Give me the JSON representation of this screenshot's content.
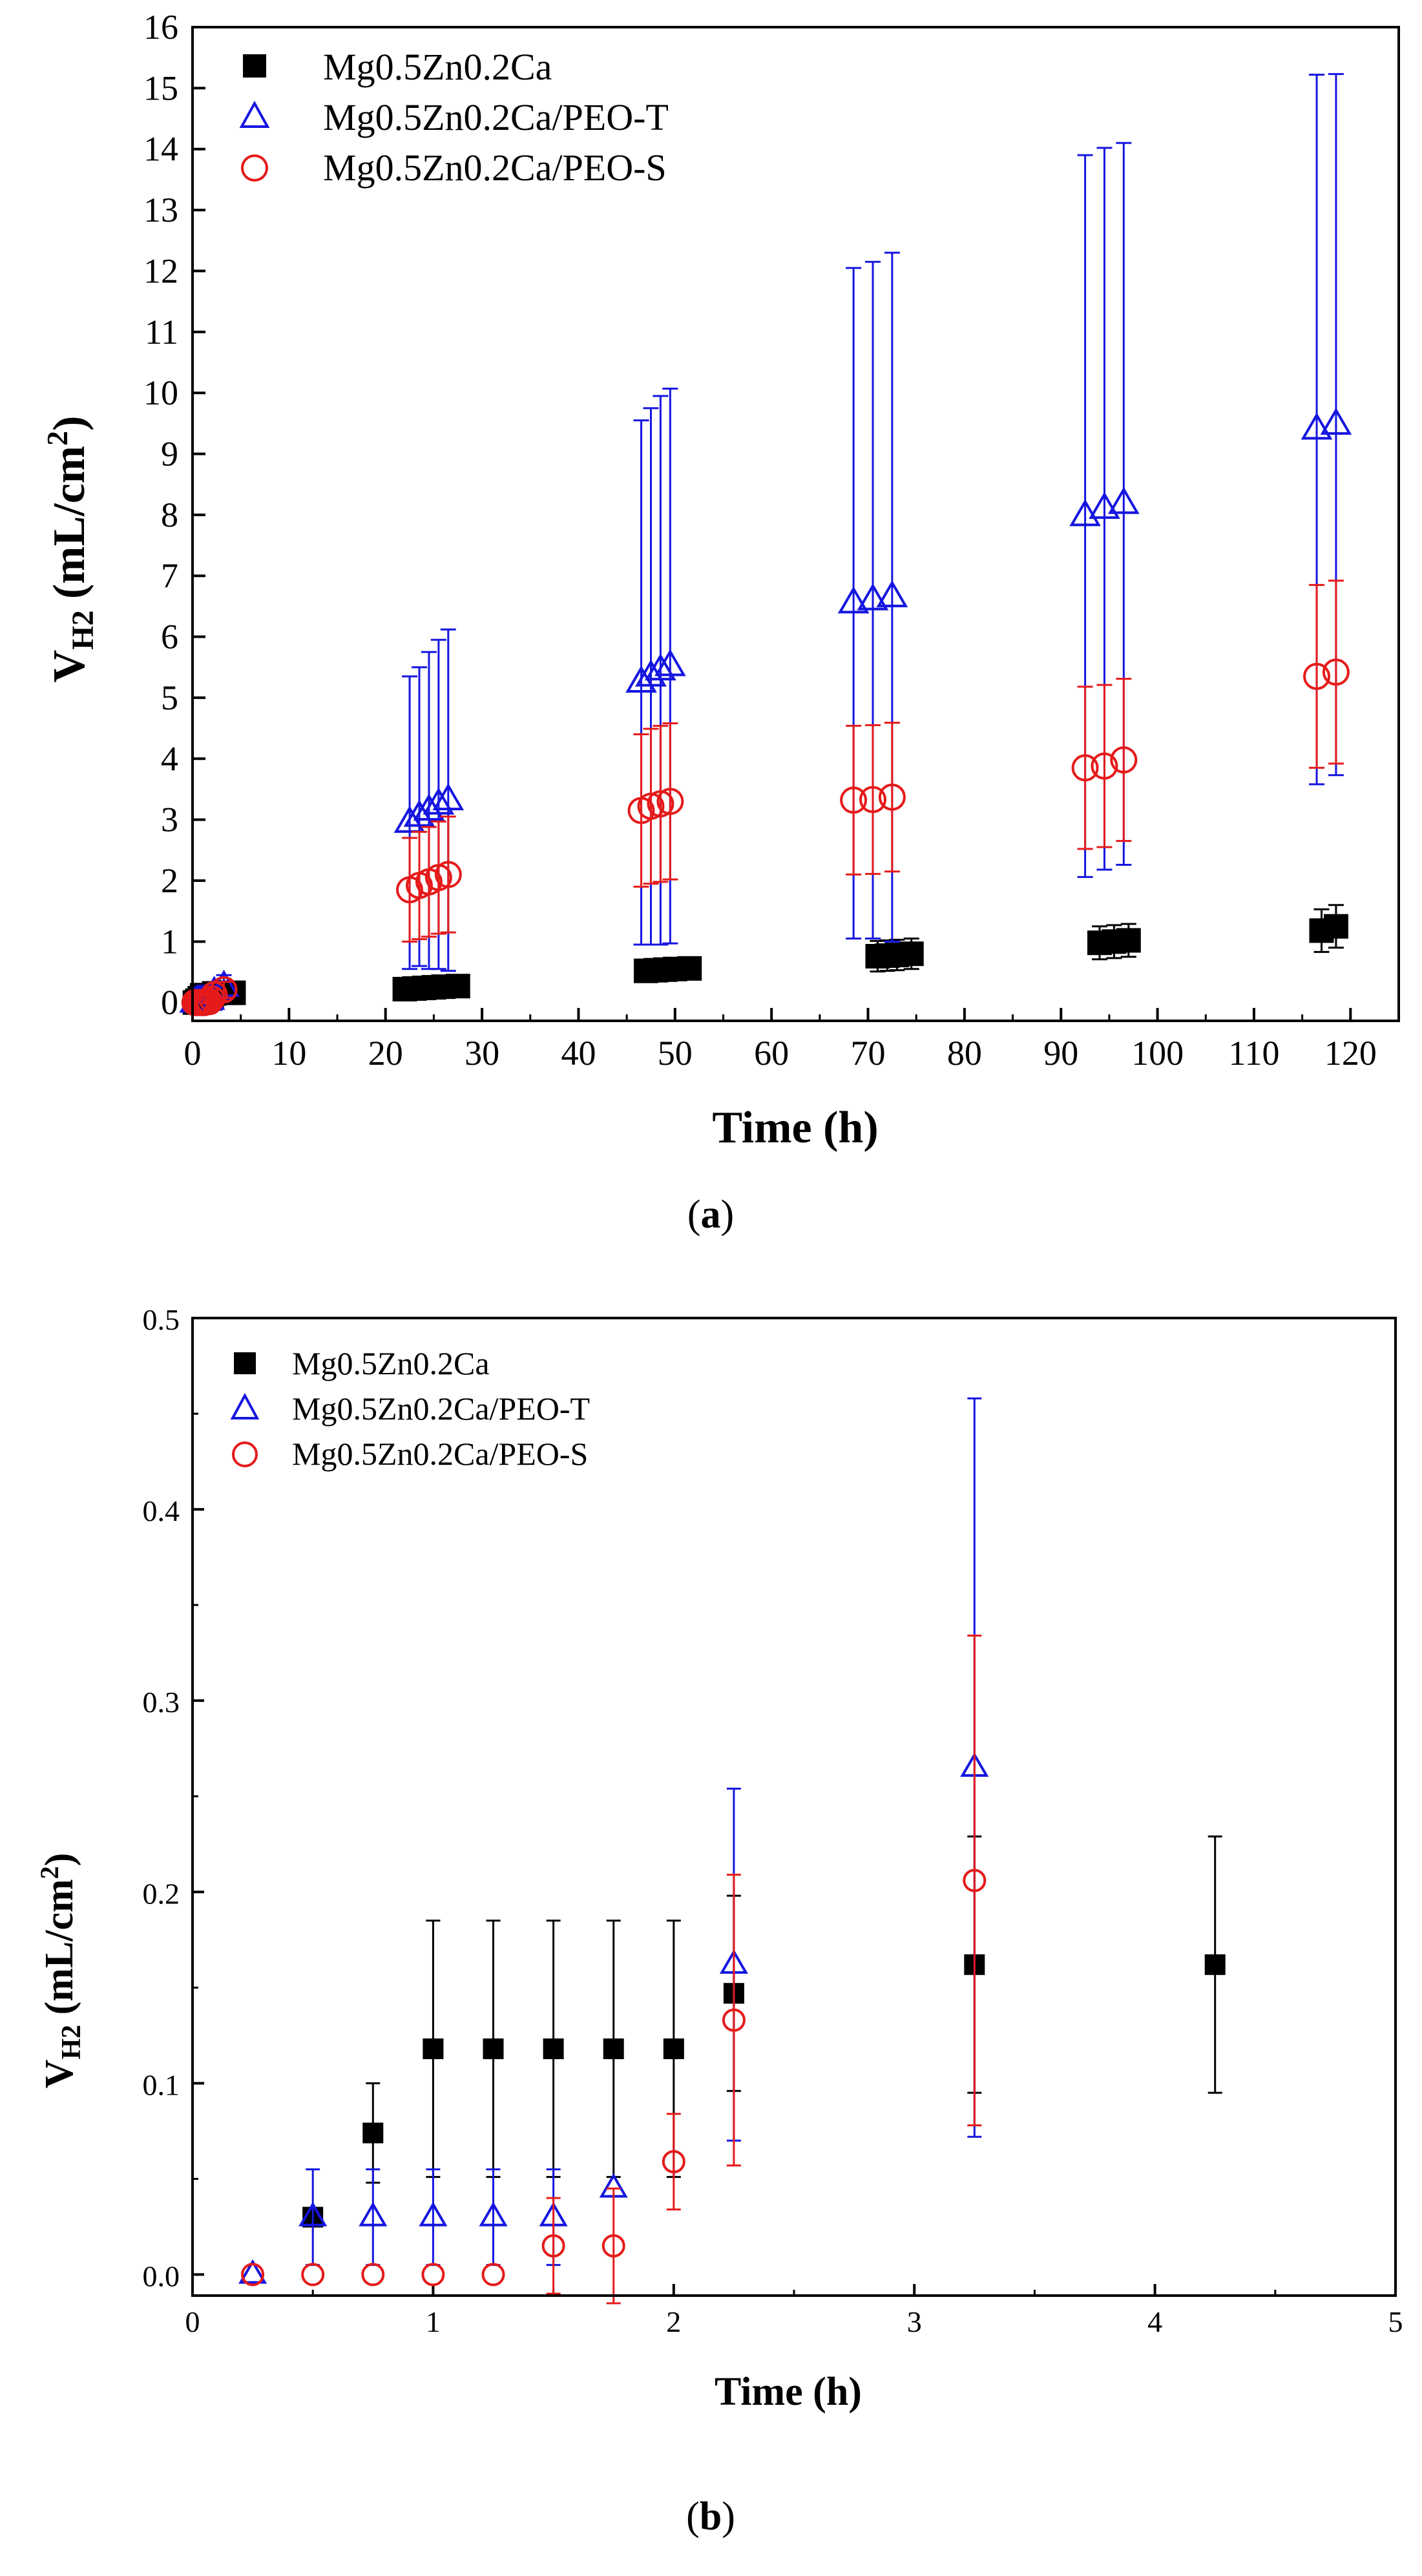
{
  "figure": {
    "panel_a_label": "(a)",
    "panel_b_label": "(b)",
    "panel_a_letter": "a",
    "panel_b_letter": "b"
  },
  "colors": {
    "series_black": "#000000",
    "series_blue": "#1515e0",
    "series_red": "#e51a1a",
    "axis": "#000000"
  },
  "chart_data": [
    {
      "id": "a",
      "type": "scatter",
      "title": "",
      "xlabel": "Time (h)",
      "ylabel_main": "V",
      "ylabel_sub": "H2",
      "ylabel_units": " (mL/cm",
      "ylabel_sup": "2",
      "ylabel_close": ")",
      "xlim": [
        0,
        125
      ],
      "ylim": [
        -0.3,
        16
      ],
      "xticks": [
        0,
        10,
        20,
        30,
        40,
        50,
        60,
        70,
        80,
        90,
        100,
        110,
        120
      ],
      "yticks": [
        0,
        1,
        2,
        3,
        4,
        5,
        6,
        7,
        8,
        9,
        10,
        11,
        12,
        13,
        14,
        15,
        16
      ],
      "xtick_labels": [
        "0",
        "10",
        "20",
        "30",
        "40",
        "50",
        "60",
        "70",
        "80",
        "90",
        "100",
        "110",
        "120"
      ],
      "ytick_labels": [
        "0",
        "1",
        "2",
        "3",
        "4",
        "5",
        "6",
        "7",
        "8",
        "9",
        "10",
        "11",
        "12",
        "13",
        "14",
        "15",
        "16"
      ],
      "legend_position": "top-left",
      "series": [
        {
          "name": "Mg0.5Zn0.2Ca",
          "marker": "filled-square",
          "color": "#000000",
          "points": [
            {
              "x": 0.25,
              "y": 0.0,
              "err": 0.0
            },
            {
              "x": 0.5,
              "y": 0.03,
              "err": 0.02
            },
            {
              "x": 0.75,
              "y": 0.07,
              "err": 0.03
            },
            {
              "x": 1,
              "y": 0.12,
              "err": 0.07
            },
            {
              "x": 1.25,
              "y": 0.12,
              "err": 0.07
            },
            {
              "x": 1.5,
              "y": 0.12,
              "err": 0.07
            },
            {
              "x": 1.75,
              "y": 0.12,
              "err": 0.07
            },
            {
              "x": 2,
              "y": 0.12,
              "err": 0.07
            },
            {
              "x": 2.25,
              "y": 0.15,
              "err": 0.05
            },
            {
              "x": 3.25,
              "y": 0.16,
              "err": 0.07
            },
            {
              "x": 4.25,
              "y": 0.16,
              "err": 0.07
            },
            {
              "x": 22,
              "y": 0.22,
              "err": 0.08
            },
            {
              "x": 23,
              "y": 0.23,
              "err": 0.08
            },
            {
              "x": 24,
              "y": 0.24,
              "err": 0.08
            },
            {
              "x": 25,
              "y": 0.25,
              "err": 0.08
            },
            {
              "x": 26,
              "y": 0.26,
              "err": 0.08
            },
            {
              "x": 27.5,
              "y": 0.27,
              "err": 0.08
            },
            {
              "x": 47,
              "y": 0.52,
              "err": 0.12
            },
            {
              "x": 48,
              "y": 0.53,
              "err": 0.12
            },
            {
              "x": 49,
              "y": 0.54,
              "err": 0.12
            },
            {
              "x": 50,
              "y": 0.55,
              "err": 0.12
            },
            {
              "x": 51.5,
              "y": 0.56,
              "err": 0.12
            },
            {
              "x": 71,
              "y": 0.76,
              "err": 0.25
            },
            {
              "x": 72,
              "y": 0.77,
              "err": 0.25
            },
            {
              "x": 73,
              "y": 0.78,
              "err": 0.25
            },
            {
              "x": 74.5,
              "y": 0.8,
              "err": 0.25
            },
            {
              "x": 94,
              "y": 0.98,
              "err": 0.27
            },
            {
              "x": 95.5,
              "y": 1.0,
              "err": 0.27
            },
            {
              "x": 97,
              "y": 1.02,
              "err": 0.27
            },
            {
              "x": 117,
              "y": 1.18,
              "err": 0.35
            },
            {
              "x": 118.5,
              "y": 1.25,
              "err": 0.35
            }
          ]
        },
        {
          "name": "Mg0.5Zn0.2Ca/PEO-T",
          "marker": "open-triangle",
          "color": "#1515e0",
          "points": [
            {
              "x": 0.25,
              "y": 0.0,
              "err": 0.0
            },
            {
              "x": 0.5,
              "y": 0.03,
              "err": 0.025
            },
            {
              "x": 0.75,
              "y": 0.03,
              "err": 0.025
            },
            {
              "x": 1,
              "y": 0.03,
              "err": 0.025
            },
            {
              "x": 1.25,
              "y": 0.03,
              "err": 0.025
            },
            {
              "x": 1.5,
              "y": 0.03,
              "err": 0.025
            },
            {
              "x": 1.75,
              "y": 0.045,
              "err": 0.04
            },
            {
              "x": 2.25,
              "y": 0.16,
              "err": 0.09
            },
            {
              "x": 3.25,
              "y": 0.26,
              "err": 0.19
            },
            {
              "x": 22.5,
              "y": 2.95,
              "err": 2.4
            },
            {
              "x": 23.5,
              "y": 3.05,
              "err": 2.45
            },
            {
              "x": 24.5,
              "y": 3.15,
              "err": 2.6
            },
            {
              "x": 25.5,
              "y": 3.25,
              "err": 2.7
            },
            {
              "x": 26.5,
              "y": 3.32,
              "err": 2.8
            },
            {
              "x": 46.5,
              "y": 5.25,
              "err": 4.3
            },
            {
              "x": 47.5,
              "y": 5.35,
              "err": 4.4
            },
            {
              "x": 48.5,
              "y": 5.45,
              "err": 4.5
            },
            {
              "x": 49.5,
              "y": 5.52,
              "err": 4.55
            },
            {
              "x": 68.5,
              "y": 6.55,
              "err": 5.5
            },
            {
              "x": 70.5,
              "y": 6.6,
              "err": 5.55
            },
            {
              "x": 72.5,
              "y": 6.65,
              "err": 5.65
            },
            {
              "x": 92.5,
              "y": 7.98,
              "err": 5.92
            },
            {
              "x": 94.5,
              "y": 8.1,
              "err": 5.92
            },
            {
              "x": 96.5,
              "y": 8.18,
              "err": 5.92
            },
            {
              "x": 116.5,
              "y": 9.4,
              "err": 5.82
            },
            {
              "x": 118.5,
              "y": 9.48,
              "err": 5.75
            }
          ]
        },
        {
          "name": "Mg0.5Zn0.2Ca/PEO-S",
          "marker": "open-circle",
          "color": "#e51a1a",
          "points": [
            {
              "x": 0.25,
              "y": 0.0,
              "err": 0.0
            },
            {
              "x": 0.5,
              "y": 0.0,
              "err": 0.0
            },
            {
              "x": 0.75,
              "y": 0.0,
              "err": 0.0
            },
            {
              "x": 1,
              "y": 0.0,
              "err": 0.0
            },
            {
              "x": 1.25,
              "y": 0.0,
              "err": 0.0
            },
            {
              "x": 1.5,
              "y": 0.015,
              "err": 0.025
            },
            {
              "x": 1.75,
              "y": 0.015,
              "err": 0.03
            },
            {
              "x": 2,
              "y": 0.06,
              "err": 0.025
            },
            {
              "x": 2.25,
              "y": 0.13,
              "err": 0.075
            },
            {
              "x": 3.25,
              "y": 0.21,
              "err": 0.13
            },
            {
              "x": 22.5,
              "y": 1.85,
              "err": 0.85
            },
            {
              "x": 23.5,
              "y": 1.92,
              "err": 0.88
            },
            {
              "x": 24.5,
              "y": 1.98,
              "err": 0.9
            },
            {
              "x": 25.5,
              "y": 2.05,
              "err": 0.92
            },
            {
              "x": 26.5,
              "y": 2.1,
              "err": 0.95
            },
            {
              "x": 46.5,
              "y": 3.15,
              "err": 1.25
            },
            {
              "x": 47.5,
              "y": 3.22,
              "err": 1.27
            },
            {
              "x": 48.5,
              "y": 3.26,
              "err": 1.28
            },
            {
              "x": 49.5,
              "y": 3.3,
              "err": 1.28
            },
            {
              "x": 68.5,
              "y": 3.32,
              "err": 1.22
            },
            {
              "x": 70.5,
              "y": 3.33,
              "err": 1.22
            },
            {
              "x": 72.5,
              "y": 3.37,
              "err": 1.22
            },
            {
              "x": 92.5,
              "y": 3.85,
              "err": 1.33
            },
            {
              "x": 94.5,
              "y": 3.88,
              "err": 1.33
            },
            {
              "x": 96.5,
              "y": 3.98,
              "err": 1.33
            },
            {
              "x": 116.5,
              "y": 5.35,
              "err": 1.5
            },
            {
              "x": 118.5,
              "y": 5.42,
              "err": 1.5
            }
          ]
        }
      ]
    },
    {
      "id": "b",
      "type": "scatter",
      "title": "",
      "xlabel": "Time (h)",
      "ylabel_main": "V",
      "ylabel_sub": "H2",
      "ylabel_units": " (mL/cm",
      "ylabel_sup": "2",
      "ylabel_close": ")",
      "xlim": [
        0,
        5
      ],
      "ylim": [
        -0.011,
        0.5
      ],
      "xticks": [
        0,
        1,
        2,
        3,
        4,
        5
      ],
      "yticks": [
        0.0,
        0.1,
        0.2,
        0.3,
        0.4,
        0.5
      ],
      "xtick_labels": [
        "0",
        "1",
        "2",
        "3",
        "4",
        "5"
      ],
      "ytick_labels": [
        "0.0",
        "0.1",
        "0.2",
        "0.3",
        "0.4",
        "0.5"
      ],
      "legend_position": "top-left",
      "series": [
        {
          "name": "Mg0.5Zn0.2Ca",
          "marker": "filled-square",
          "color": "#000000",
          "points": [
            {
              "x": 0.5,
              "y": 0.03,
              "err": 0.0
            },
            {
              "x": 0.75,
              "y": 0.074,
              "err": 0.026
            },
            {
              "x": 1,
              "y": 0.118,
              "err": 0.067
            },
            {
              "x": 1.25,
              "y": 0.118,
              "err": 0.067
            },
            {
              "x": 1.5,
              "y": 0.118,
              "err": 0.067
            },
            {
              "x": 1.75,
              "y": 0.118,
              "err": 0.067
            },
            {
              "x": 2,
              "y": 0.118,
              "err": 0.067
            },
            {
              "x": 2.25,
              "y": 0.147,
              "err": 0.051
            },
            {
              "x": 3.25,
              "y": 0.162,
              "err": 0.067
            },
            {
              "x": 4.25,
              "y": 0.162,
              "err": 0.067
            }
          ]
        },
        {
          "name": "Mg0.5Zn0.2Ca/PEO-T",
          "marker": "open-triangle",
          "color": "#1515e0",
          "points": [
            {
              "x": 0.25,
              "y": 0.0,
              "err": 0.0
            },
            {
              "x": 0.5,
              "y": 0.03,
              "err": 0.025
            },
            {
              "x": 0.75,
              "y": 0.03,
              "err": 0.025
            },
            {
              "x": 1,
              "y": 0.03,
              "err": 0.025
            },
            {
              "x": 1.25,
              "y": 0.03,
              "err": 0.025
            },
            {
              "x": 1.5,
              "y": 0.03,
              "err": 0.025
            },
            {
              "x": 1.75,
              "y": 0.045,
              "err": 0.0
            },
            {
              "x": 2.25,
              "y": 0.162,
              "err": 0.092
            },
            {
              "x": 3.25,
              "y": 0.265,
              "err": 0.193
            }
          ]
        },
        {
          "name": "Mg0.5Zn0.2Ca/PEO-S",
          "marker": "open-circle",
          "color": "#e51a1a",
          "points": [
            {
              "x": 0.25,
              "y": 0.0,
              "err": 0.0
            },
            {
              "x": 0.5,
              "y": 0.0,
              "err": 0.0
            },
            {
              "x": 0.75,
              "y": 0.0,
              "err": 0.0
            },
            {
              "x": 1,
              "y": 0.0,
              "err": 0.0
            },
            {
              "x": 1.25,
              "y": 0.0,
              "err": 0.0
            },
            {
              "x": 1.5,
              "y": 0.015,
              "err": 0.025
            },
            {
              "x": 1.75,
              "y": 0.015,
              "err": 0.03
            },
            {
              "x": 2,
              "y": 0.059,
              "err": 0.025
            },
            {
              "x": 2.25,
              "y": 0.133,
              "err": 0.076
            },
            {
              "x": 3.25,
              "y": 0.206,
              "err": 0.128
            }
          ]
        }
      ]
    }
  ]
}
